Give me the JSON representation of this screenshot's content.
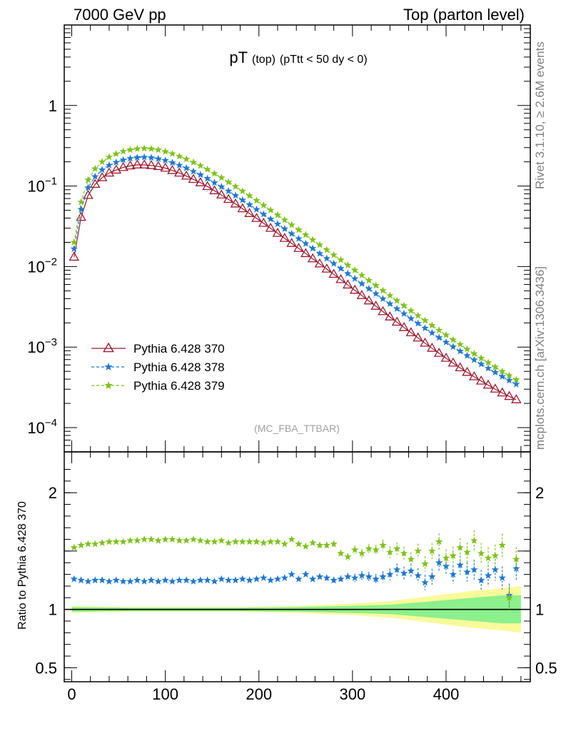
{
  "header": {
    "left": "7000 GeV pp",
    "right": "Top (parton level)"
  },
  "plot_title": {
    "main": "pT",
    "sub1": "(top)",
    "sub2": "(pTtt < 50 dy < 0)"
  },
  "watermark": "(MC_FBA_TTBAR)",
  "side_text": {
    "rivet": "Rivet 3.1.10, ≥ 2.6M events",
    "mcplots": "mcplots.cern.ch [arXiv:1306.3436]"
  },
  "ratio_ylabel": "Ratio to Pythia 6.428 370",
  "colors": {
    "s370": "#9b1b30",
    "s378": "#1f78d0",
    "s379": "#7ec21b",
    "band_inner": "#8cf08c",
    "band_outer": "#fafa9b"
  },
  "chart_data": [
    {
      "type": "line",
      "panel": "main",
      "yscale": "log",
      "xlim": [
        -8,
        490
      ],
      "ylim": [
        5e-05,
        10
      ],
      "yticks": [
        {
          "value": 1,
          "base": "1",
          "exp": ""
        },
        {
          "value": 0.1,
          "base": "10",
          "exp": "−1"
        },
        {
          "value": 0.01,
          "base": "10",
          "exp": "−2"
        },
        {
          "value": 0.001,
          "base": "10",
          "exp": "−3"
        },
        {
          "value": 0.0001,
          "base": "10",
          "exp": "−4"
        }
      ],
      "legend_placement": "lower-left",
      "series": [
        {
          "name": "Pythia 6.428 370",
          "marker": "open-triangle",
          "linestyle": "solid",
          "x": [
            2.5,
            10,
            17.5,
            25,
            32.5,
            40,
            47.5,
            55,
            62.5,
            70,
            77.5,
            85,
            92.5,
            100,
            107.5,
            115,
            122.5,
            130,
            137.5,
            145,
            152.5,
            160,
            167.5,
            175,
            182.5,
            190,
            197.5,
            205,
            212.5,
            220,
            227.5,
            235,
            242.5,
            250,
            257.5,
            265,
            272.5,
            280,
            287.5,
            295,
            302.5,
            310,
            317.5,
            325,
            332.5,
            340,
            347.5,
            355,
            362.5,
            370,
            377.5,
            385,
            392.5,
            400,
            407.5,
            415,
            422.5,
            430,
            437.5,
            445,
            452.5,
            460,
            467.5,
            475
          ],
          "y": [
            0.0131,
            0.0409,
            0.0764,
            0.105,
            0.127,
            0.145,
            0.158,
            0.17,
            0.178,
            0.183,
            0.183,
            0.18,
            0.175,
            0.167,
            0.156,
            0.145,
            0.133,
            0.121,
            0.11,
            0.0987,
            0.0874,
            0.0774,
            0.0683,
            0.0599,
            0.0523,
            0.0456,
            0.0397,
            0.0345,
            0.0299,
            0.0259,
            0.0224,
            0.0194,
            0.0168,
            0.0145,
            0.0125,
            0.0108,
            0.00932,
            0.00801,
            0.00689,
            0.00591,
            0.00508,
            0.00437,
            0.00375,
            0.00322,
            0.00276,
            0.00237,
            0.00204,
            0.00175,
            0.00151,
            0.0013,
            0.00112,
            0.000968,
            0.000838,
            0.000728,
            0.000634,
            0.000554,
            0.000486,
            0.000428,
            0.000379,
            0.000337,
            0.000301,
            0.00027,
            0.000244,
            0.000222
          ]
        },
        {
          "name": "Pythia 6.428 378",
          "marker": "star",
          "linestyle": "dashed",
          "x": [
            2.5,
            10,
            17.5,
            25,
            32.5,
            40,
            47.5,
            55,
            62.5,
            70,
            77.5,
            85,
            92.5,
            100,
            107.5,
            115,
            122.5,
            130,
            137.5,
            145,
            152.5,
            160,
            167.5,
            175,
            182.5,
            190,
            197.5,
            205,
            212.5,
            220,
            227.5,
            235,
            242.5,
            250,
            257.5,
            265,
            272.5,
            280,
            287.5,
            295,
            302.5,
            310,
            317.5,
            325,
            332.5,
            340,
            347.5,
            355,
            362.5,
            370,
            377.5,
            385,
            392.5,
            400,
            407.5,
            415,
            422.5,
            430,
            437.5,
            445,
            452.5,
            460,
            467.5,
            475
          ],
          "y": [
            0.0166,
            0.0513,
            0.0955,
            0.131,
            0.159,
            0.181,
            0.197,
            0.211,
            0.22,
            0.226,
            0.228,
            0.225,
            0.218,
            0.208,
            0.195,
            0.181,
            0.167,
            0.152,
            0.138,
            0.124,
            0.11,
            0.0979,
            0.0867,
            0.0763,
            0.0669,
            0.0586,
            0.0512,
            0.0446,
            0.0389,
            0.0338,
            0.0294,
            0.0256,
            0.0222,
            0.0193,
            0.0168,
            0.0145,
            0.0126,
            0.0109,
            0.00945,
            0.00817,
            0.00708,
            0.00613,
            0.00531,
            0.0046,
            0.00398,
            0.00345,
            0.00299,
            0.0026,
            0.00226,
            0.00197,
            0.00172,
            0.0015,
            0.00131,
            0.00115,
            0.00101,
            0.000889,
            0.000784,
            0.000693,
            0.000614,
            0.000545,
            0.000485,
            0.000432,
            0.000386,
            0.000346
          ]
        },
        {
          "name": "Pythia 6.428 379",
          "marker": "star",
          "linestyle": "dashed",
          "x": [
            2.5,
            10,
            17.5,
            25,
            32.5,
            40,
            47.5,
            55,
            62.5,
            70,
            77.5,
            85,
            92.5,
            100,
            107.5,
            115,
            122.5,
            130,
            137.5,
            145,
            152.5,
            160,
            167.5,
            175,
            182.5,
            190,
            197.5,
            205,
            212.5,
            220,
            227.5,
            235,
            242.5,
            250,
            257.5,
            265,
            272.5,
            280,
            287.5,
            295,
            302.5,
            310,
            317.5,
            325,
            332.5,
            340,
            347.5,
            355,
            362.5,
            370,
            377.5,
            385,
            392.5,
            400,
            407.5,
            415,
            422.5,
            430,
            437.5,
            445,
            452.5,
            460,
            467.5,
            475
          ],
          "y": [
            0.02,
            0.0633,
            0.119,
            0.164,
            0.2,
            0.229,
            0.251,
            0.269,
            0.282,
            0.29,
            0.293,
            0.29,
            0.281,
            0.268,
            0.252,
            0.234,
            0.216,
            0.197,
            0.179,
            0.161,
            0.143,
            0.127,
            0.112,
            0.0988,
            0.0866,
            0.0758,
            0.0661,
            0.0576,
            0.0501,
            0.0436,
            0.0379,
            0.0329,
            0.0286,
            0.0248,
            0.0215,
            0.0186,
            0.0161,
            0.0139,
            0.0121,
            0.0104,
            0.00902,
            0.0078,
            0.00674,
            0.00583,
            0.00504,
            0.00436,
            0.00377,
            0.00327,
            0.00283,
            0.00246,
            0.00214,
            0.00186,
            0.00162,
            0.00141,
            0.00123,
            0.00108,
            0.000944,
            0.000829,
            0.000729,
            0.000642,
            0.000566,
            0.0005,
            0.000443,
            0.000393
          ]
        }
      ]
    },
    {
      "type": "line",
      "panel": "ratio",
      "xlim": [
        -8,
        490
      ],
      "ylim": [
        0.38,
        2.35
      ],
      "xticks": [
        0,
        100,
        200,
        300,
        400
      ],
      "yticks": [
        0.5,
        1,
        1.5,
        2
      ],
      "ytick_labels": [
        "0.5",
        "1",
        "",
        "2"
      ],
      "series": [
        {
          "name": "Pythia 6.428 378",
          "x": [
            2.5,
            10,
            17.5,
            25,
            32.5,
            40,
            47.5,
            55,
            62.5,
            70,
            77.5,
            85,
            92.5,
            100,
            107.5,
            115,
            122.5,
            130,
            137.5,
            145,
            152.5,
            160,
            167.5,
            175,
            182.5,
            190,
            197.5,
            205,
            212.5,
            220,
            227.5,
            235,
            242.5,
            250,
            257.5,
            265,
            272.5,
            280,
            287.5,
            295,
            302.5,
            310,
            317.5,
            325,
            332.5,
            340,
            347.5,
            355,
            362.5,
            370,
            377.5,
            385,
            392.5,
            400,
            407.5,
            415,
            422.5,
            430,
            437.5,
            445,
            452.5,
            460,
            467.5,
            475
          ],
          "y": [
            1.26,
            1.25,
            1.24,
            1.25,
            1.25,
            1.24,
            1.25,
            1.24,
            1.24,
            1.25,
            1.24,
            1.25,
            1.24,
            1.25,
            1.24,
            1.25,
            1.25,
            1.24,
            1.25,
            1.25,
            1.24,
            1.26,
            1.25,
            1.25,
            1.26,
            1.25,
            1.26,
            1.27,
            1.25,
            1.26,
            1.27,
            1.3,
            1.26,
            1.3,
            1.26,
            1.28,
            1.27,
            1.25,
            1.26,
            1.28,
            1.27,
            1.29,
            1.28,
            1.26,
            1.28,
            1.3,
            1.34,
            1.31,
            1.33,
            1.29,
            1.23,
            1.28,
            1.4,
            1.37,
            1.3,
            1.38,
            1.32,
            1.34,
            1.25,
            1.29,
            1.34,
            1.27,
            1.12,
            1.35
          ]
        },
        {
          "name": "Pythia 6.428 379",
          "x": [
            2.5,
            10,
            17.5,
            25,
            32.5,
            40,
            47.5,
            55,
            62.5,
            70,
            77.5,
            85,
            92.5,
            100,
            107.5,
            115,
            122.5,
            130,
            137.5,
            145,
            152.5,
            160,
            167.5,
            175,
            182.5,
            190,
            197.5,
            205,
            212.5,
            220,
            227.5,
            235,
            242.5,
            250,
            257.5,
            265,
            272.5,
            280,
            287.5,
            295,
            302.5,
            310,
            317.5,
            325,
            332.5,
            340,
            347.5,
            355,
            362.5,
            370,
            377.5,
            385,
            392.5,
            400,
            407.5,
            415,
            422.5,
            430,
            437.5,
            445,
            452.5,
            460,
            467.5,
            475
          ],
          "y": [
            1.53,
            1.55,
            1.56,
            1.56,
            1.57,
            1.58,
            1.58,
            1.58,
            1.59,
            1.59,
            1.6,
            1.6,
            1.59,
            1.6,
            1.6,
            1.59,
            1.59,
            1.6,
            1.59,
            1.58,
            1.58,
            1.59,
            1.57,
            1.58,
            1.58,
            1.58,
            1.58,
            1.57,
            1.58,
            1.58,
            1.56,
            1.6,
            1.56,
            1.54,
            1.57,
            1.55,
            1.55,
            1.56,
            1.48,
            1.45,
            1.51,
            1.48,
            1.52,
            1.51,
            1.55,
            1.49,
            1.52,
            1.48,
            1.43,
            1.5,
            1.39,
            1.5,
            1.58,
            1.44,
            1.46,
            1.53,
            1.49,
            1.59,
            1.48,
            1.44,
            1.46,
            1.55,
            1.1,
            1.43
          ]
        }
      ],
      "uncertainty_bands": {
        "x": [
          0,
          60,
          120,
          180,
          240,
          300,
          340,
          370,
          400,
          430,
          460,
          480
        ],
        "inner_half_width": [
          0.02,
          0.015,
          0.015,
          0.015,
          0.02,
          0.03,
          0.04,
          0.06,
          0.08,
          0.1,
          0.12,
          0.12
        ],
        "outer_half_width": [
          0.03,
          0.02,
          0.02,
          0.02,
          0.03,
          0.05,
          0.07,
          0.1,
          0.13,
          0.16,
          0.18,
          0.2
        ]
      }
    }
  ]
}
